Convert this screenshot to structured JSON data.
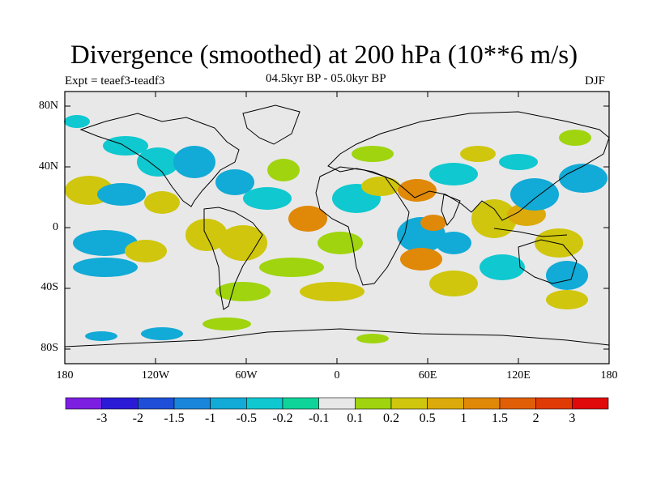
{
  "title": "Divergence (smoothed) at 200 hPa (10**6 m/s)",
  "experiment": "Expt = teaef3-teadf3",
  "period": "04.5kyr BP - 05.0kyr BP",
  "season": "DJF",
  "axes": {
    "lat_labels": [
      "80N",
      "40N",
      "0",
      "40S",
      "80S"
    ],
    "lon_labels": [
      "180",
      "120W",
      "60W",
      "0",
      "60E",
      "120E",
      "180"
    ]
  },
  "colorbar": {
    "colors": [
      "#7c1fe0",
      "#2b1bd6",
      "#1f4fd8",
      "#1a86db",
      "#12aad6",
      "#10c8cf",
      "#0fd49a",
      "#e8e8e8",
      "#9fd40f",
      "#cfc60d",
      "#dcaa0a",
      "#e08808",
      "#e05e06",
      "#e03a05",
      "#e00a0a"
    ],
    "labels": [
      "-3",
      "-2",
      "-1.5",
      "-1",
      "-0.5",
      "-0.2",
      "-0.1",
      "0.1",
      "0.2",
      "0.5",
      "1",
      "1.5",
      "2",
      "3"
    ]
  },
  "map_background": "#e8e8e8"
}
